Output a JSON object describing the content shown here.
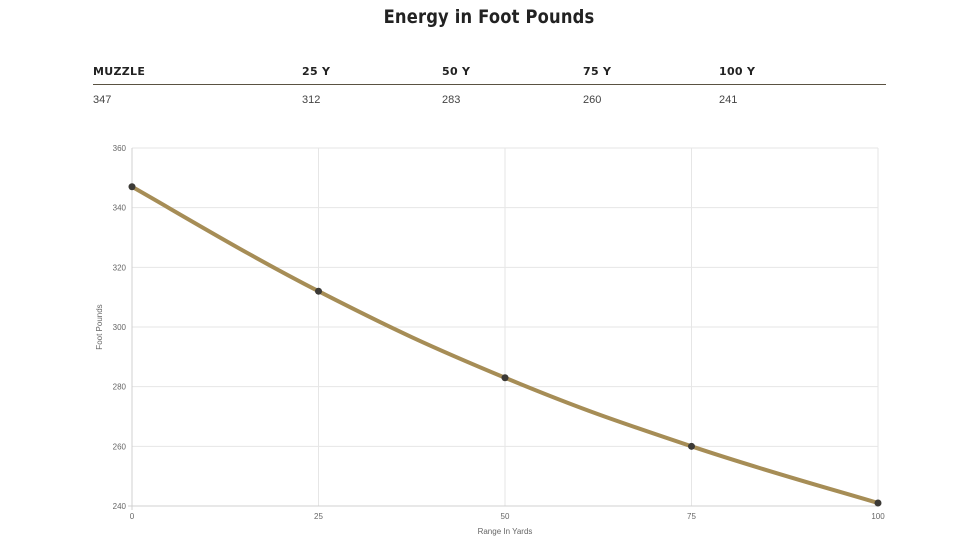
{
  "chart_data": {
    "type": "line",
    "title": "Energy in Foot Pounds",
    "table": {
      "headers": [
        "MUZZLE",
        "25 Y",
        "50 Y",
        "75 Y",
        "100 Y"
      ],
      "values": [
        "347",
        "312",
        "283",
        "260",
        "241"
      ]
    },
    "x": [
      0,
      25,
      50,
      75,
      100
    ],
    "series": [
      {
        "name": "Energy",
        "values": [
          347,
          312,
          283,
          260,
          241
        ]
      }
    ],
    "xlabel": "Range In Yards",
    "ylabel": "Foot Pounds",
    "xlim": [
      0,
      100
    ],
    "ylim": [
      240,
      360
    ],
    "xticks": [
      0,
      25,
      50,
      75,
      100
    ],
    "yticks": [
      240,
      260,
      280,
      300,
      320,
      340,
      360
    ],
    "grid": true,
    "colors": {
      "line": "#a68d56",
      "point": "#3c3a36",
      "grid": "#e6e6e6",
      "axis": "#d0d0d0"
    }
  }
}
